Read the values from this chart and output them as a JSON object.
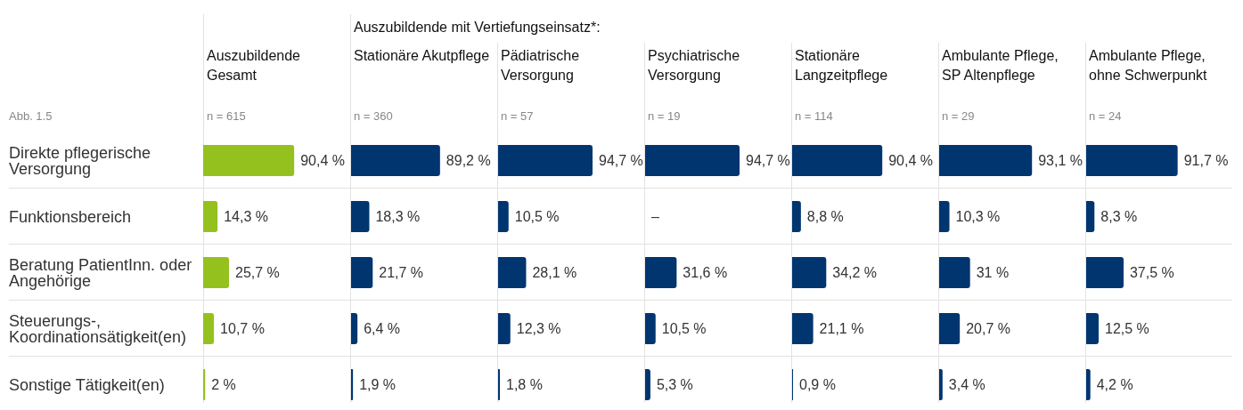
{
  "chart_data": [
    {
      "type": "bar",
      "orientation": "horizontal",
      "title": "Auszubildende Gesamt",
      "subtitle": "n = 615",
      "annotations": [
        "Abb. 1.5"
      ],
      "tick_labels": "y",
      "categories": [
        "Direkte pflegerische Versorgung",
        "Funktionsbereich",
        "Beratung PatientInn. oder Angehörige",
        "Steuerungs-, Koordinationsätigkeit(en)",
        "Sonstige Tätigkeit(en)"
      ],
      "series": [
        {
          "color": "#95c11f",
          "values": [
            90.4,
            14.3,
            25.7,
            10.7,
            2
          ],
          "value_labels": [
            "90,4 %",
            "14,3 %",
            "25,7 %",
            "10,7 %",
            "2 %"
          ]
        }
      ]
    },
    {
      "type": "bar",
      "orientation": "horizontal",
      "title": "Stationäre Akutpflege",
      "subtitle": "n = 360",
      "annotations": [
        "Auszubildende mit Vertiefungseinsatz*:"
      ],
      "tick_labels": false,
      "series": [
        {
          "color": "#003570",
          "values": [
            89.2,
            18.3,
            21.7,
            6.4,
            1.9
          ],
          "value_labels": [
            "89,2 %",
            "18,3 %",
            "21,7 %",
            "6,4 %",
            "1,9 %"
          ]
        }
      ]
    },
    {
      "type": "bar",
      "orientation": "horizontal",
      "title": "Pädiatrische Versorgung",
      "subtitle": "n = 57",
      "tick_labels": false,
      "series": [
        {
          "color": "#003570",
          "values": [
            94.7,
            10.5,
            28.1,
            12.3,
            1.8
          ],
          "value_labels": [
            "94,7 %",
            "10,5 %",
            "28,1 %",
            "12,3 %",
            "1,8 %"
          ]
        }
      ]
    },
    {
      "type": "bar",
      "orientation": "horizontal",
      "title": "Psychiatrische Versorgung",
      "subtitle": "n = 19",
      "tick_labels": false,
      "series": [
        {
          "color": "#003570",
          "values": [
            94.7,
            null,
            31.6,
            10.5,
            5.3
          ],
          "value_labels": [
            "94,7 %",
            "–",
            "31,6 %",
            "10,5 %",
            "5,3 %"
          ]
        }
      ]
    },
    {
      "type": "bar",
      "orientation": "horizontal",
      "title": "Stationäre Langzeitpflege",
      "subtitle": "n = 114",
      "tick_labels": false,
      "series": [
        {
          "color": "#003570",
          "values": [
            90.4,
            8.8,
            34.2,
            21.1,
            0.9
          ],
          "value_labels": [
            "90,4 %",
            "8,8 %",
            "34,2 %",
            "21,1 %",
            "0,9 %"
          ]
        }
      ]
    },
    {
      "type": "bar",
      "orientation": "horizontal",
      "title": "Ambulante Pflege, SP Altenpflege",
      "subtitle": "n = 29",
      "tick_labels": false,
      "series": [
        {
          "color": "#003570",
          "values": [
            93.1,
            10.3,
            31,
            20.7,
            3.4
          ],
          "value_labels": [
            "93,1 %",
            "10,3 %",
            "31 %",
            "20,7 %",
            "3,4 %"
          ]
        }
      ]
    },
    {
      "type": "bar",
      "orientation": "horizontal",
      "title": "Ambulante Pflege, ohne Schwerpunkt",
      "subtitle": "n = 24",
      "tick_labels": false,
      "series": [
        {
          "color": "#003570",
          "values": [
            91.7,
            8.3,
            37.5,
            12.5,
            4.2
          ],
          "value_labels": [
            "91,7 %",
            "8,3 %",
            "37,5 %",
            "12,5 %",
            "4,2 %"
          ]
        }
      ]
    }
  ]
}
